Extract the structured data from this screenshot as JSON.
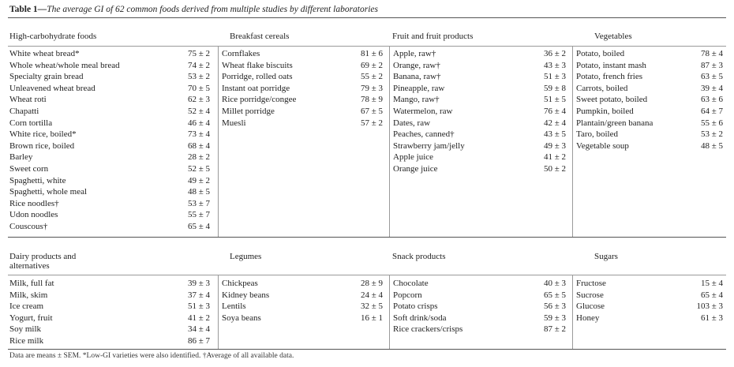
{
  "table": {
    "label": "Table 1—",
    "title": "The average GI of 62 common foods derived from multiple studies by different laboratories",
    "footnote": "Data are means ± SEM. *Low-GI varieties were also identified. †Average of all available data.",
    "top_groups": [
      {
        "heading": "High-carbohydrate foods",
        "rows": [
          {
            "name": "White wheat bread*",
            "gi": "75 ± 2"
          },
          {
            "name": "Whole wheat/whole meal bread",
            "gi": "74 ± 2"
          },
          {
            "name": "Specialty grain bread",
            "gi": "53 ± 2"
          },
          {
            "name": "Unleavened wheat bread",
            "gi": "70 ± 5"
          },
          {
            "name": "Wheat roti",
            "gi": "62 ± 3"
          },
          {
            "name": "Chapatti",
            "gi": "52 ± 4"
          },
          {
            "name": "Corn tortilla",
            "gi": "46 ± 4"
          },
          {
            "name": "White rice, boiled*",
            "gi": "73 ± 4"
          },
          {
            "name": "Brown rice, boiled",
            "gi": "68 ± 4"
          },
          {
            "name": "Barley",
            "gi": "28 ± 2"
          },
          {
            "name": "Sweet corn",
            "gi": "52 ± 5"
          },
          {
            "name": "Spaghetti, white",
            "gi": "49 ± 2"
          },
          {
            "name": "Spaghetti, whole meal",
            "gi": "48 ± 5"
          },
          {
            "name": "Rice noodles†",
            "gi": "53 ± 7"
          },
          {
            "name": "Udon noodles",
            "gi": "55 ± 7"
          },
          {
            "name": "Couscous†",
            "gi": "65 ± 4"
          }
        ]
      },
      {
        "heading": "Breakfast cereals",
        "rows": [
          {
            "name": "Cornflakes",
            "gi": "81 ± 6"
          },
          {
            "name": "Wheat flake biscuits",
            "gi": "69 ± 2"
          },
          {
            "name": "Porridge, rolled oats",
            "gi": "55 ± 2"
          },
          {
            "name": "Instant oat porridge",
            "gi": "79 ± 3"
          },
          {
            "name": "Rice porridge/congee",
            "gi": "78 ± 9"
          },
          {
            "name": "Millet porridge",
            "gi": "67 ± 5"
          },
          {
            "name": "Muesli",
            "gi": "57 ± 2"
          }
        ]
      },
      {
        "heading": "Fruit and fruit products",
        "rows": [
          {
            "name": "Apple, raw†",
            "gi": "36 ± 2"
          },
          {
            "name": "Orange, raw†",
            "gi": "43 ± 3"
          },
          {
            "name": "Banana, raw†",
            "gi": "51 ± 3"
          },
          {
            "name": "Pineapple, raw",
            "gi": "59 ± 8"
          },
          {
            "name": "Mango, raw†",
            "gi": "51 ± 5"
          },
          {
            "name": "Watermelon, raw",
            "gi": "76 ± 4"
          },
          {
            "name": "Dates, raw",
            "gi": "42 ± 4"
          },
          {
            "name": "Peaches, canned†",
            "gi": "43 ± 5"
          },
          {
            "name": "Strawberry jam/jelly",
            "gi": "49 ± 3"
          },
          {
            "name": "Apple juice",
            "gi": "41 ± 2"
          },
          {
            "name": "Orange juice",
            "gi": "50 ± 2"
          }
        ]
      },
      {
        "heading": "Vegetables",
        "rows": [
          {
            "name": "Potato, boiled",
            "gi": "78 ± 4"
          },
          {
            "name": "Potato, instant mash",
            "gi": "87 ± 3"
          },
          {
            "name": "Potato, french fries",
            "gi": "63 ± 5"
          },
          {
            "name": "Carrots, boiled",
            "gi": "39 ± 4"
          },
          {
            "name": "Sweet potato, boiled",
            "gi": "63 ± 6"
          },
          {
            "name": "Pumpkin, boiled",
            "gi": "64 ± 7"
          },
          {
            "name": "Plantain/green banana",
            "gi": "55 ± 6"
          },
          {
            "name": "Taro, boiled",
            "gi": "53 ± 2"
          },
          {
            "name": "Vegetable soup",
            "gi": "48 ± 5"
          }
        ]
      }
    ],
    "bottom_groups": [
      {
        "heading": "Dairy products and",
        "heading2": "alternatives",
        "rows": [
          {
            "name": "Milk, full fat",
            "gi": "39 ± 3"
          },
          {
            "name": "Milk, skim",
            "gi": "37 ± 4"
          },
          {
            "name": "Ice cream",
            "gi": "51 ± 3"
          },
          {
            "name": "Yogurt, fruit",
            "gi": "41 ± 2"
          },
          {
            "name": "Soy milk",
            "gi": "34 ± 4"
          },
          {
            "name": "Rice milk",
            "gi": "86 ± 7"
          }
        ]
      },
      {
        "heading": "Legumes",
        "heading2": "",
        "rows": [
          {
            "name": "Chickpeas",
            "gi": "28 ± 9"
          },
          {
            "name": "Kidney beans",
            "gi": "24 ± 4"
          },
          {
            "name": "Lentils",
            "gi": "32 ± 5"
          },
          {
            "name": "Soya beans",
            "gi": "16 ± 1"
          }
        ]
      },
      {
        "heading": "Snack products",
        "heading2": "",
        "rows": [
          {
            "name": "Chocolate",
            "gi": "40 ± 3"
          },
          {
            "name": "Popcorn",
            "gi": "65 ± 5"
          },
          {
            "name": "Potato crisps",
            "gi": "56 ± 3"
          },
          {
            "name": "Soft drink/soda",
            "gi": "59 ± 3"
          },
          {
            "name": "Rice crackers/crisps",
            "gi": "87 ± 2"
          }
        ]
      },
      {
        "heading": "Sugars",
        "heading2": "",
        "rows": [
          {
            "name": "Fructose",
            "gi": "15 ± 4"
          },
          {
            "name": "Sucrose",
            "gi": "65 ± 4"
          },
          {
            "name": "Glucose",
            "gi": "103 ± 3"
          },
          {
            "name": "Honey",
            "gi": "61 ± 3"
          }
        ]
      }
    ]
  }
}
